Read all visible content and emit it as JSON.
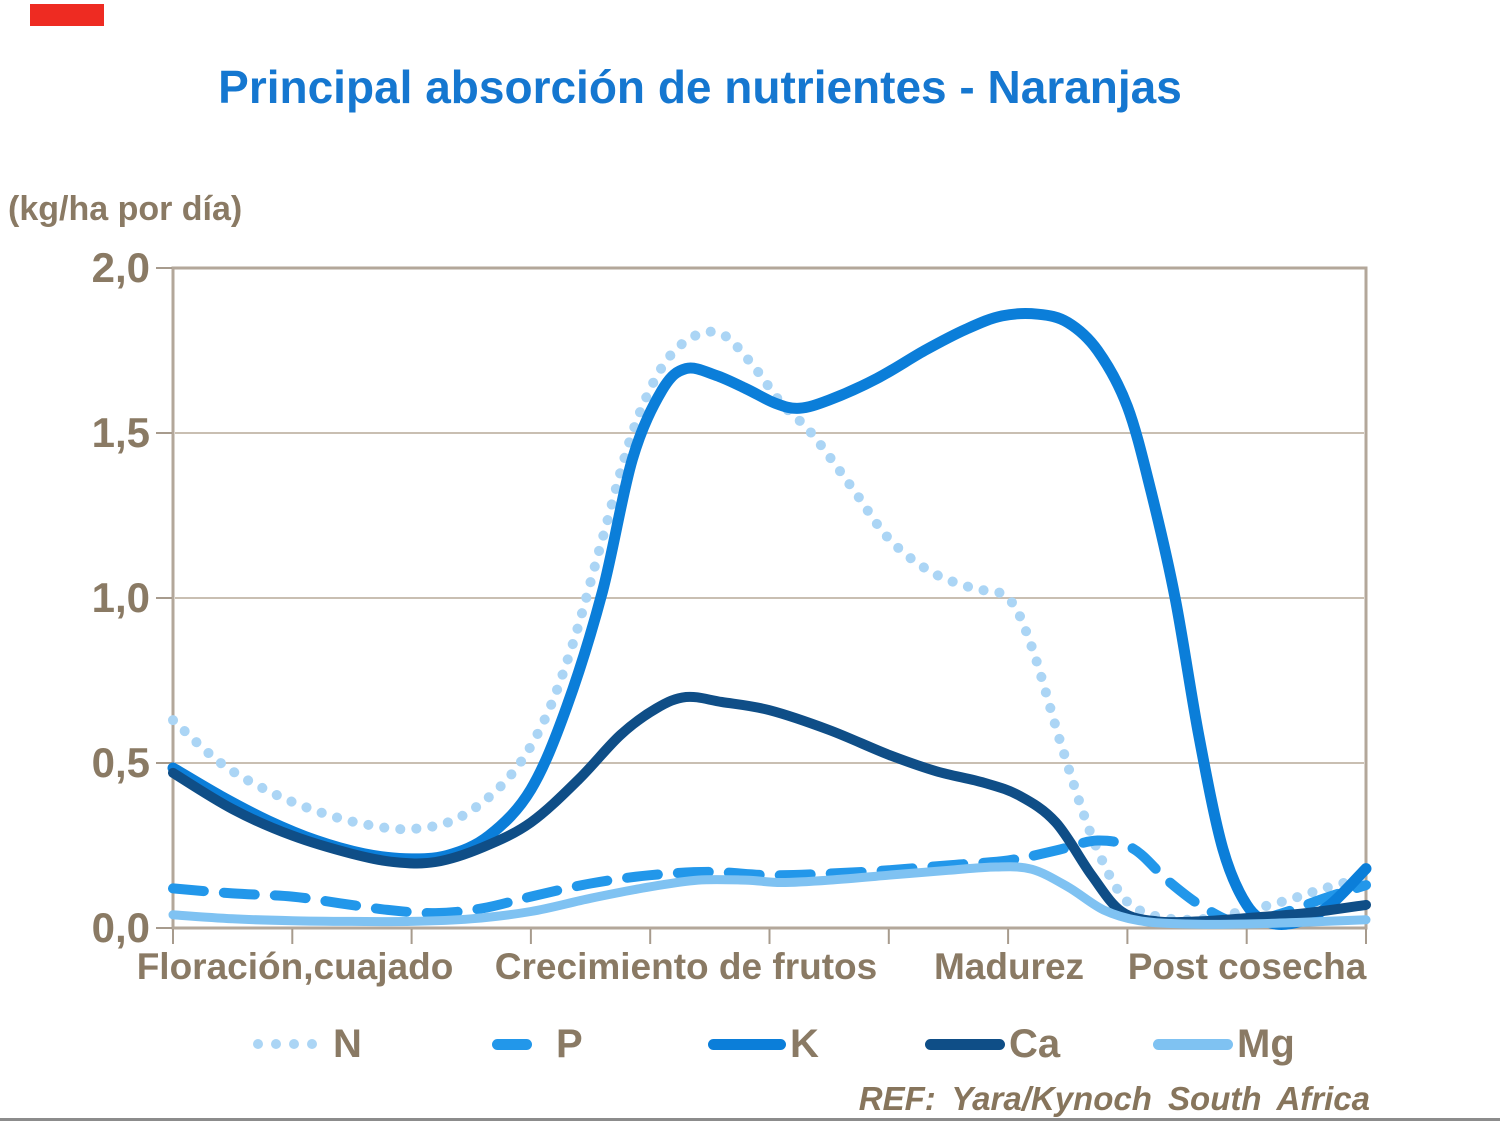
{
  "page": {
    "title": "Principal absorción de nutrientes - Naranjas",
    "footer_ref": "REF: Yara/Kynoch South Africa",
    "accent_bar_color": "#ee2b22"
  },
  "chart_data": {
    "type": "line",
    "title": "Principal absorción de nutrientes - Naranjas",
    "xlabel": "",
    "ylabel": "(kg/ha por día)",
    "ylim": [
      0,
      2.0
    ],
    "y_ticks": [
      "2,0",
      "1,5",
      "1,0",
      "0,5",
      "0,0"
    ],
    "y_tick_values": [
      2.0,
      1.5,
      1.0,
      0.5,
      0.0
    ],
    "x_phase_labels": [
      "Floración,cuajado",
      "Crecimiento de frutos",
      "Madurez",
      "Post cosecha"
    ],
    "x_axis_note": "x is a 0-10 position across the season (10 equal tick intervals, no numeric labels)",
    "grid": "horizontal gridlines at 0.5, 1.0, 1.5",
    "legend_position": "bottom",
    "series": [
      {
        "name": "N",
        "style": "dotted",
        "color": "#abd5f5",
        "points": [
          [
            0,
            0.63
          ],
          [
            0.4,
            0.5
          ],
          [
            0.8,
            0.415
          ],
          [
            1.2,
            0.355
          ],
          [
            1.6,
            0.315
          ],
          [
            2.0,
            0.3
          ],
          [
            2.4,
            0.335
          ],
          [
            2.8,
            0.45
          ],
          [
            3.1,
            0.62
          ],
          [
            3.35,
            0.86
          ],
          [
            3.6,
            1.18
          ],
          [
            3.85,
            1.5
          ],
          [
            4.1,
            1.7
          ],
          [
            4.35,
            1.79
          ],
          [
            4.6,
            1.8
          ],
          [
            4.85,
            1.71
          ],
          [
            5.1,
            1.59
          ],
          [
            5.35,
            1.5
          ],
          [
            5.7,
            1.33
          ],
          [
            6.0,
            1.18
          ],
          [
            6.35,
            1.08
          ],
          [
            6.7,
            1.03
          ],
          [
            7.0,
            1.0
          ],
          [
            7.2,
            0.85
          ],
          [
            7.45,
            0.55
          ],
          [
            7.7,
            0.28
          ],
          [
            7.95,
            0.1
          ],
          [
            8.2,
            0.04
          ],
          [
            8.55,
            0.025
          ],
          [
            8.9,
            0.045
          ],
          [
            9.3,
            0.08
          ],
          [
            9.65,
            0.12
          ],
          [
            10,
            0.155
          ]
        ]
      },
      {
        "name": "P",
        "style": "dashed",
        "color": "#2297ea",
        "points": [
          [
            0,
            0.12
          ],
          [
            0.5,
            0.105
          ],
          [
            1.0,
            0.095
          ],
          [
            1.4,
            0.075
          ],
          [
            1.8,
            0.055
          ],
          [
            2.2,
            0.045
          ],
          [
            2.6,
            0.06
          ],
          [
            3.0,
            0.095
          ],
          [
            3.5,
            0.135
          ],
          [
            4.0,
            0.16
          ],
          [
            4.5,
            0.17
          ],
          [
            5.0,
            0.16
          ],
          [
            5.5,
            0.165
          ],
          [
            6.0,
            0.175
          ],
          [
            6.5,
            0.19
          ],
          [
            7.0,
            0.205
          ],
          [
            7.4,
            0.235
          ],
          [
            7.75,
            0.265
          ],
          [
            8.05,
            0.24
          ],
          [
            8.35,
            0.14
          ],
          [
            8.65,
            0.06
          ],
          [
            8.95,
            0.015
          ],
          [
            9.3,
            0.045
          ],
          [
            9.65,
            0.09
          ],
          [
            10,
            0.13
          ]
        ]
      },
      {
        "name": "K",
        "style": "solid",
        "color": "#0b7ed9",
        "points": [
          [
            0,
            0.485
          ],
          [
            0.4,
            0.4
          ],
          [
            0.8,
            0.325
          ],
          [
            1.2,
            0.265
          ],
          [
            1.6,
            0.225
          ],
          [
            1.95,
            0.21
          ],
          [
            2.3,
            0.22
          ],
          [
            2.65,
            0.28
          ],
          [
            3.0,
            0.42
          ],
          [
            3.3,
            0.67
          ],
          [
            3.6,
            1.02
          ],
          [
            3.85,
            1.42
          ],
          [
            4.1,
            1.63
          ],
          [
            4.3,
            1.695
          ],
          [
            4.55,
            1.675
          ],
          [
            4.8,
            1.635
          ],
          [
            5.05,
            1.59
          ],
          [
            5.25,
            1.575
          ],
          [
            5.5,
            1.6
          ],
          [
            5.9,
            1.665
          ],
          [
            6.3,
            1.75
          ],
          [
            6.65,
            1.815
          ],
          [
            6.95,
            1.855
          ],
          [
            7.25,
            1.86
          ],
          [
            7.5,
            1.835
          ],
          [
            7.75,
            1.75
          ],
          [
            8.0,
            1.58
          ],
          [
            8.2,
            1.32
          ],
          [
            8.4,
            1.0
          ],
          [
            8.6,
            0.58
          ],
          [
            8.8,
            0.24
          ],
          [
            9.0,
            0.07
          ],
          [
            9.2,
            0.015
          ],
          [
            9.45,
            0.02
          ],
          [
            9.7,
            0.07
          ],
          [
            10,
            0.18
          ]
        ]
      },
      {
        "name": "Ca",
        "style": "solid",
        "color": "#0f4e87",
        "points": [
          [
            0,
            0.47
          ],
          [
            0.5,
            0.36
          ],
          [
            1.0,
            0.28
          ],
          [
            1.5,
            0.225
          ],
          [
            1.85,
            0.2
          ],
          [
            2.2,
            0.2
          ],
          [
            2.6,
            0.245
          ],
          [
            3.0,
            0.32
          ],
          [
            3.4,
            0.45
          ],
          [
            3.75,
            0.585
          ],
          [
            4.05,
            0.665
          ],
          [
            4.3,
            0.7
          ],
          [
            4.6,
            0.685
          ],
          [
            5.0,
            0.66
          ],
          [
            5.5,
            0.6
          ],
          [
            6.0,
            0.525
          ],
          [
            6.4,
            0.475
          ],
          [
            6.8,
            0.44
          ],
          [
            7.1,
            0.4
          ],
          [
            7.4,
            0.32
          ],
          [
            7.7,
            0.16
          ],
          [
            7.95,
            0.05
          ],
          [
            8.25,
            0.02
          ],
          [
            8.6,
            0.02
          ],
          [
            9.0,
            0.03
          ],
          [
            9.5,
            0.045
          ],
          [
            10,
            0.07
          ]
        ]
      },
      {
        "name": "Mg",
        "style": "solid",
        "color": "#7fc2f2",
        "points": [
          [
            0,
            0.04
          ],
          [
            0.5,
            0.028
          ],
          [
            1.0,
            0.022
          ],
          [
            1.5,
            0.02
          ],
          [
            2.0,
            0.02
          ],
          [
            2.5,
            0.028
          ],
          [
            3.0,
            0.05
          ],
          [
            3.5,
            0.09
          ],
          [
            4.0,
            0.125
          ],
          [
            4.4,
            0.145
          ],
          [
            4.8,
            0.145
          ],
          [
            5.1,
            0.138
          ],
          [
            5.5,
            0.145
          ],
          [
            6.0,
            0.16
          ],
          [
            6.5,
            0.175
          ],
          [
            6.9,
            0.185
          ],
          [
            7.2,
            0.178
          ],
          [
            7.5,
            0.125
          ],
          [
            7.8,
            0.055
          ],
          [
            8.1,
            0.022
          ],
          [
            8.5,
            0.012
          ],
          [
            9.0,
            0.012
          ],
          [
            9.5,
            0.018
          ],
          [
            10,
            0.025
          ]
        ]
      }
    ],
    "axis_colors": {
      "border": "#b3a79a",
      "grid": "#c9bfb2",
      "tick": "#a79b8d"
    }
  },
  "legend": {
    "items": [
      {
        "label": "N",
        "style": "dotted",
        "color": "#abd5f5"
      },
      {
        "label": "P",
        "style": "dashed",
        "color": "#2297ea"
      },
      {
        "label": "K",
        "style": "solid",
        "color": "#0b7ed9"
      },
      {
        "label": "Ca",
        "style": "solid",
        "color": "#0f4e87"
      },
      {
        "label": "Mg",
        "style": "solid",
        "color": "#7fc2f2"
      }
    ]
  }
}
